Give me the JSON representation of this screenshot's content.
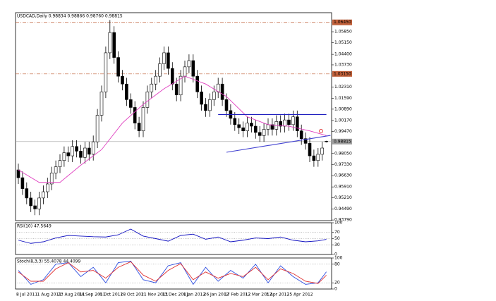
{
  "chart_data": [
    {
      "type": "candlestick",
      "title": "USDCAD,Daily  0.98834 0.98866 0.98760 0.98815",
      "categories": [
        "8 Jul 2011",
        null,
        null,
        null,
        null,
        "1 Aug 2011",
        null,
        null,
        null,
        null,
        "23 Aug 2011",
        null,
        null,
        null,
        null,
        "14 Sep 2011",
        null,
        null,
        null,
        null,
        "6 Oct 2011",
        null,
        null,
        null,
        null,
        "28 Oct 2011",
        null,
        null,
        null,
        null,
        "21 Nov 2011",
        null,
        null,
        null,
        null,
        "13 Dec 2011",
        null,
        null,
        null,
        null,
        "4 Jan 2012",
        null,
        null,
        null,
        null,
        "26 Jan 2012",
        null,
        null,
        null,
        null,
        "17 Feb 2012",
        null,
        null,
        null,
        null,
        "12 Mar 2012",
        null,
        null,
        null,
        null,
        "3 Apr 2012",
        null,
        null,
        null,
        null,
        "25 Apr 2012",
        null,
        null,
        null,
        null,
        null,
        null,
        null,
        null,
        null
      ],
      "open": [
        0.97,
        0.965,
        0.958,
        0.952,
        0.947,
        0.945,
        0.952,
        0.956,
        0.961,
        0.968,
        0.972,
        0.976,
        0.981,
        0.979,
        0.985,
        0.982,
        0.978,
        0.984,
        0.98,
        0.988,
        1.005,
        1.02,
        1.045,
        1.058,
        1.042,
        1.03,
        1.025,
        1.015,
        1.01,
        1.0,
        0.995,
        1.01,
        1.02,
        1.025,
        1.03,
        1.038,
        1.045,
        1.035,
        1.025,
        1.018,
        1.03,
        1.036,
        1.04,
        1.03,
        1.02,
        1.012,
        1.008,
        1.015,
        1.02,
        1.025,
        1.015,
        1.008,
        1.003,
        0.999,
        0.997,
        0.995,
        1.0,
        0.998,
        0.994,
        0.992,
        0.996,
        0.999,
        0.996,
        1.001,
        0.998,
        1.002,
        0.999,
        1.004,
        0.995,
        0.99,
        0.987,
        0.979,
        0.976,
        0.98,
        0.98834
      ],
      "high": [
        0.974,
        0.969,
        0.962,
        0.956,
        0.951,
        0.956,
        0.96,
        0.965,
        0.972,
        0.976,
        0.98,
        0.985,
        0.985,
        0.989,
        0.989,
        0.986,
        0.988,
        0.988,
        0.992,
        1.009,
        1.024,
        1.049,
        1.066,
        1.062,
        1.046,
        1.034,
        1.029,
        1.019,
        1.014,
        1.004,
        1.014,
        1.024,
        1.029,
        1.034,
        1.042,
        1.049,
        1.049,
        1.039,
        1.029,
        1.034,
        1.04,
        1.044,
        1.044,
        1.034,
        1.024,
        1.016,
        1.019,
        1.024,
        1.029,
        1.029,
        1.019,
        1.012,
        1.007,
        1.003,
        1.001,
        1.004,
        1.004,
        1.002,
        0.998,
        1.0,
        1.003,
        1.003,
        1.005,
        1.005,
        1.006,
        1.006,
        1.008,
        1.008,
        0.999,
        0.994,
        0.991,
        0.983,
        0.984,
        0.988,
        0.98866
      ],
      "low": [
        0.961,
        0.954,
        0.948,
        0.943,
        0.941,
        0.941,
        0.948,
        0.952,
        0.957,
        0.964,
        0.968,
        0.972,
        0.975,
        0.975,
        0.978,
        0.974,
        0.974,
        0.976,
        0.976,
        0.984,
        1.001,
        1.016,
        1.041,
        1.038,
        1.026,
        1.021,
        1.011,
        1.006,
        0.996,
        0.991,
        0.991,
        1.006,
        1.016,
        1.021,
        1.026,
        1.034,
        1.031,
        1.021,
        1.014,
        1.014,
        1.026,
        1.032,
        1.026,
        1.016,
        1.008,
        1.004,
        1.004,
        1.011,
        1.016,
        1.011,
        1.004,
        0.999,
        0.995,
        0.993,
        0.991,
        0.991,
        0.994,
        0.99,
        0.988,
        0.988,
        0.992,
        0.992,
        0.992,
        0.994,
        0.994,
        0.995,
        0.995,
        0.991,
        0.986,
        0.983,
        0.975,
        0.972,
        0.972,
        0.976,
        0.9876
      ],
      "close": [
        0.965,
        0.958,
        0.952,
        0.947,
        0.945,
        0.952,
        0.956,
        0.961,
        0.968,
        0.972,
        0.976,
        0.981,
        0.979,
        0.985,
        0.982,
        0.978,
        0.984,
        0.98,
        0.988,
        1.005,
        1.02,
        1.045,
        1.058,
        1.042,
        1.03,
        1.025,
        1.015,
        1.01,
        1.0,
        0.995,
        1.01,
        1.02,
        1.025,
        1.03,
        1.038,
        1.045,
        1.035,
        1.025,
        1.018,
        1.03,
        1.036,
        1.04,
        1.03,
        1.02,
        1.012,
        1.008,
        1.015,
        1.02,
        1.025,
        1.015,
        1.008,
        1.003,
        0.999,
        0.997,
        0.995,
        1.0,
        0.998,
        0.994,
        0.992,
        0.996,
        0.999,
        0.996,
        1.001,
        0.998,
        1.002,
        0.999,
        1.004,
        0.995,
        0.99,
        0.987,
        0.979,
        0.976,
        0.98,
        0.984,
        0.98815
      ],
      "ma": {
        "color": "#e040c0",
        "x": [
          0,
          5,
          10,
          15,
          20,
          25,
          30,
          35,
          40,
          45,
          50,
          55,
          60,
          65,
          70,
          74
        ],
        "values": [
          0.97,
          0.962,
          0.962,
          0.973,
          0.983,
          1.0,
          1.012,
          1.022,
          1.03,
          1.025,
          1.017,
          1.004,
          0.999,
          0.998,
          0.995,
          0.992
        ]
      },
      "levels": [
        {
          "value": 1.0645,
          "label": "1.06450",
          "color": "#c0603a"
        },
        {
          "value": 1.0315,
          "label": "1.03150",
          "color": "#c0603a"
        }
      ],
      "current_price": {
        "value": 0.98815,
        "label": "0.98815",
        "color": "#a0a0a0"
      },
      "trendlines": [
        {
          "color": "#2020c0",
          "x": [
            48,
            74
          ],
          "values": [
            1.0055,
            1.0055
          ]
        },
        {
          "color": "#4040d0",
          "x": [
            50,
            75
          ],
          "values": [
            0.9813,
            0.9921
          ]
        }
      ],
      "xlim": [
        0,
        74
      ],
      "ylim": [
        0.9375,
        1.0707
      ],
      "yticks": [
        {
          "value": 1.0585,
          "label": "1.05850"
        },
        {
          "value": 1.0515,
          "label": "1.05150"
        },
        {
          "value": 1.044,
          "label": "1.04400"
        },
        {
          "value": 1.0373,
          "label": "1.03730"
        },
        {
          "value": 1.0231,
          "label": "1.02310"
        },
        {
          "value": 1.0159,
          "label": "1.01590"
        },
        {
          "value": 1.0089,
          "label": "1.00890"
        },
        {
          "value": 1.0017,
          "label": "1.00170"
        },
        {
          "value": 0.9947,
          "label": "0.99470"
        },
        {
          "value": 0.9805,
          "label": "0.98050"
        },
        {
          "value": 0.9733,
          "label": "0.97330"
        },
        {
          "value": 0.9663,
          "label": "0.96630"
        },
        {
          "value": 0.9591,
          "label": "0.95910"
        },
        {
          "value": 0.9521,
          "label": "0.95210"
        },
        {
          "value": 0.9449,
          "label": "0.94490"
        },
        {
          "value": 0.9379,
          "label": "0.93790"
        }
      ]
    },
    {
      "type": "line",
      "title": "RSI(10) 47.5649",
      "grid": true,
      "x": [
        0,
        3,
        6,
        9,
        12,
        15,
        18,
        21,
        24,
        27,
        30,
        33,
        36,
        39,
        42,
        45,
        48,
        51,
        54,
        57,
        60,
        63,
        66,
        69,
        72,
        74
      ],
      "series": [
        {
          "color": "#1010c0",
          "values": [
            45,
            35,
            40,
            52,
            60,
            58,
            56,
            55,
            62,
            80,
            58,
            50,
            42,
            60,
            64,
            48,
            55,
            40,
            45,
            52,
            50,
            55,
            45,
            40,
            43,
            47.5649
          ]
        }
      ],
      "xlim": [
        0,
        74
      ],
      "ylim": [
        0,
        100
      ],
      "yticks": [
        100,
        70,
        50,
        30,
        0
      ]
    },
    {
      "type": "line",
      "title": "Stoch(8,3,3) 55.4078 44.4099",
      "grid": true,
      "x": [
        0,
        3,
        6,
        9,
        12,
        15,
        18,
        21,
        24,
        27,
        30,
        33,
        36,
        39,
        42,
        45,
        48,
        51,
        54,
        57,
        60,
        63,
        66,
        69,
        72,
        74
      ],
      "series": [
        {
          "color": "#3050e0",
          "values": [
            60,
            15,
            30,
            80,
            85,
            40,
            70,
            20,
            85,
            90,
            30,
            20,
            75,
            85,
            15,
            70,
            25,
            60,
            35,
            80,
            20,
            75,
            40,
            15,
            20,
            55.4078
          ]
        },
        {
          "color": "#e03030",
          "values": [
            55,
            25,
            25,
            65,
            85,
            55,
            60,
            35,
            70,
            88,
            45,
            25,
            60,
            82,
            30,
            55,
            35,
            50,
            40,
            70,
            30,
            65,
            50,
            25,
            18,
            44.4099
          ]
        }
      ],
      "xlim": [
        0,
        74
      ],
      "ylim": [
        0,
        100
      ],
      "yticks": [
        100,
        80,
        20,
        0
      ]
    }
  ]
}
